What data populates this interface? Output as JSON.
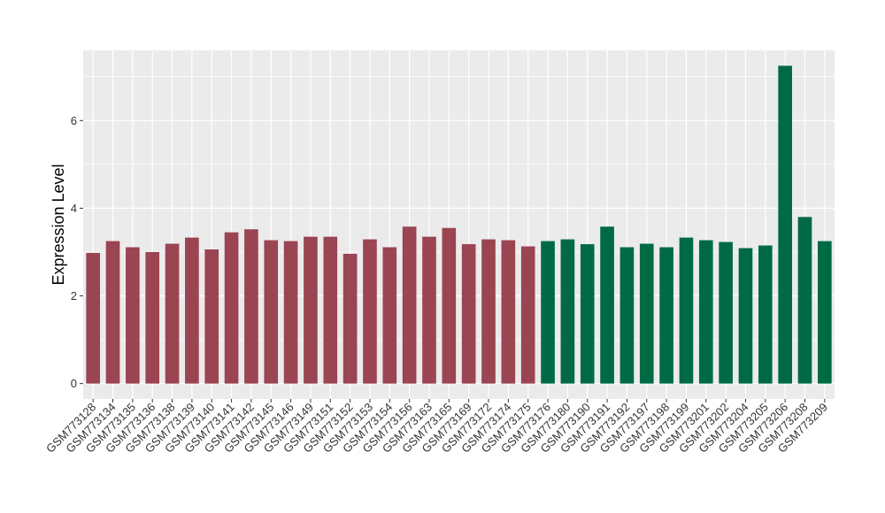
{
  "chart_data": {
    "type": "bar",
    "title": "",
    "xlabel": "",
    "ylabel": "Expression Level",
    "ylim": [
      -0.35,
      7.6
    ],
    "yticks": [
      0,
      2,
      4,
      6
    ],
    "grid": true,
    "background": "#ebebeb",
    "grid_color": "#ffffff",
    "categories": [
      "GSM773128",
      "GSM773134",
      "GSM773135",
      "GSM773136",
      "GSM773138",
      "GSM773139",
      "GSM773140",
      "GSM773141",
      "GSM773142",
      "GSM773145",
      "GSM773146",
      "GSM773149",
      "GSM773151",
      "GSM773152",
      "GSM773153",
      "GSM773154",
      "GSM773156",
      "GSM773163",
      "GSM773165",
      "GSM773169",
      "GSM773172",
      "GSM773174",
      "GSM773175",
      "GSM773176",
      "GSM773180",
      "GSM773190",
      "GSM773191",
      "GSM773192",
      "GSM773197",
      "GSM773198",
      "GSM773199",
      "GSM773201",
      "GSM773202",
      "GSM773204",
      "GSM773205",
      "GSM773206",
      "GSM773208",
      "GSM773209"
    ],
    "values": [
      2.98,
      3.25,
      3.11,
      3.0,
      3.19,
      3.33,
      3.06,
      3.45,
      3.52,
      3.27,
      3.25,
      3.35,
      3.35,
      2.96,
      3.29,
      3.11,
      3.58,
      3.35,
      3.55,
      3.18,
      3.29,
      3.27,
      3.13,
      3.25,
      3.29,
      3.18,
      3.58,
      3.11,
      3.19,
      3.11,
      3.33,
      3.27,
      3.23,
      3.09,
      3.15,
      7.25,
      3.8,
      3.25
    ],
    "groups": [
      "A",
      "A",
      "A",
      "A",
      "A",
      "A",
      "A",
      "A",
      "A",
      "A",
      "A",
      "A",
      "A",
      "A",
      "A",
      "A",
      "A",
      "A",
      "A",
      "A",
      "A",
      "A",
      "A",
      "B",
      "B",
      "B",
      "B",
      "B",
      "B",
      "B",
      "B",
      "B",
      "B",
      "B",
      "B",
      "B",
      "B",
      "B"
    ],
    "group_colors": {
      "A": "#9b4452",
      "B": "#006a45"
    }
  }
}
